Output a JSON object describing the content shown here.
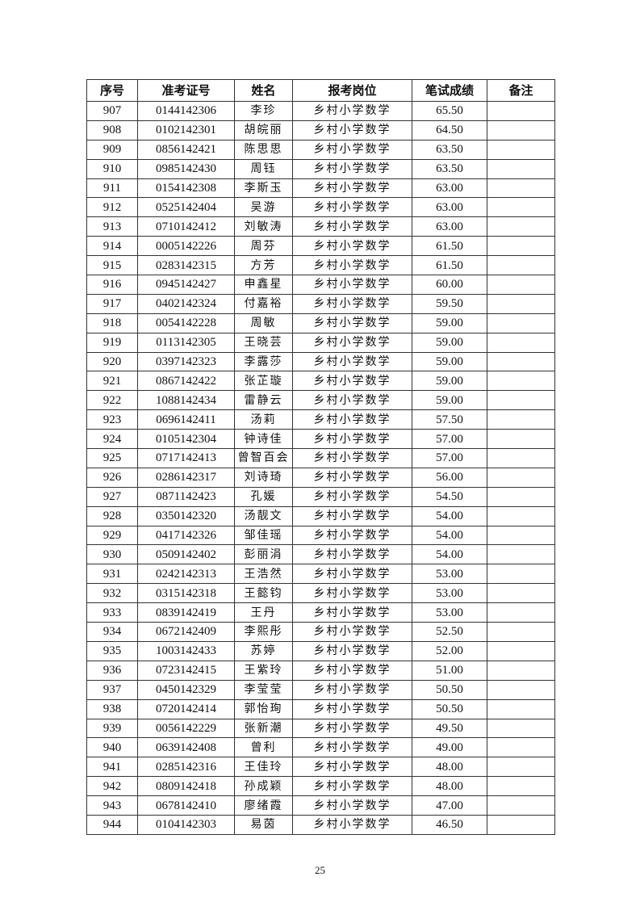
{
  "table": {
    "headers": [
      "序号",
      "准考证号",
      "姓名",
      "报考岗位",
      "笔试成绩",
      "备注"
    ],
    "rows": [
      [
        "907",
        "0144142306",
        "李珍",
        "乡村小学数学",
        "65.50",
        ""
      ],
      [
        "908",
        "0102142301",
        "胡皖丽",
        "乡村小学数学",
        "64.50",
        ""
      ],
      [
        "909",
        "0856142421",
        "陈思思",
        "乡村小学数学",
        "63.50",
        ""
      ],
      [
        "910",
        "0985142430",
        "周钰",
        "乡村小学数学",
        "63.50",
        ""
      ],
      [
        "911",
        "0154142308",
        "李斯玉",
        "乡村小学数学",
        "63.00",
        ""
      ],
      [
        "912",
        "0525142404",
        "吴游",
        "乡村小学数学",
        "63.00",
        ""
      ],
      [
        "913",
        "0710142412",
        "刘敏涛",
        "乡村小学数学",
        "63.00",
        ""
      ],
      [
        "914",
        "0005142226",
        "周芬",
        "乡村小学数学",
        "61.50",
        ""
      ],
      [
        "915",
        "0283142315",
        "方芳",
        "乡村小学数学",
        "61.50",
        ""
      ],
      [
        "916",
        "0945142427",
        "申鑫星",
        "乡村小学数学",
        "60.00",
        ""
      ],
      [
        "917",
        "0402142324",
        "付嘉裕",
        "乡村小学数学",
        "59.50",
        ""
      ],
      [
        "918",
        "0054142228",
        "周敏",
        "乡村小学数学",
        "59.00",
        ""
      ],
      [
        "919",
        "0113142305",
        "王晓芸",
        "乡村小学数学",
        "59.00",
        ""
      ],
      [
        "920",
        "0397142323",
        "李露莎",
        "乡村小学数学",
        "59.00",
        ""
      ],
      [
        "921",
        "0867142422",
        "张芷璇",
        "乡村小学数学",
        "59.00",
        ""
      ],
      [
        "922",
        "1088142434",
        "雷静云",
        "乡村小学数学",
        "59.00",
        ""
      ],
      [
        "923",
        "0696142411",
        "汤莉",
        "乡村小学数学",
        "57.50",
        ""
      ],
      [
        "924",
        "0105142304",
        "钟诗佳",
        "乡村小学数学",
        "57.00",
        ""
      ],
      [
        "925",
        "0717142413",
        "曾智百会",
        "乡村小学数学",
        "57.00",
        ""
      ],
      [
        "926",
        "0286142317",
        "刘诗琦",
        "乡村小学数学",
        "56.00",
        ""
      ],
      [
        "927",
        "0871142423",
        "孔媛",
        "乡村小学数学",
        "54.50",
        ""
      ],
      [
        "928",
        "0350142320",
        "汤靓文",
        "乡村小学数学",
        "54.00",
        ""
      ],
      [
        "929",
        "0417142326",
        "邹佳瑶",
        "乡村小学数学",
        "54.00",
        ""
      ],
      [
        "930",
        "0509142402",
        "彭丽涓",
        "乡村小学数学",
        "54.00",
        ""
      ],
      [
        "931",
        "0242142313",
        "王浩然",
        "乡村小学数学",
        "53.00",
        ""
      ],
      [
        "932",
        "0315142318",
        "王懿钧",
        "乡村小学数学",
        "53.00",
        ""
      ],
      [
        "933",
        "0839142419",
        "王丹",
        "乡村小学数学",
        "53.00",
        ""
      ],
      [
        "934",
        "0672142409",
        "李熙彤",
        "乡村小学数学",
        "52.50",
        ""
      ],
      [
        "935",
        "1003142433",
        "苏婷",
        "乡村小学数学",
        "52.00",
        ""
      ],
      [
        "936",
        "0723142415",
        "王紫玲",
        "乡村小学数学",
        "51.00",
        ""
      ],
      [
        "937",
        "0450142329",
        "李莹莹",
        "乡村小学数学",
        "50.50",
        ""
      ],
      [
        "938",
        "0720142414",
        "郭怡珣",
        "乡村小学数学",
        "50.50",
        ""
      ],
      [
        "939",
        "0056142229",
        "张新潮",
        "乡村小学数学",
        "49.50",
        ""
      ],
      [
        "940",
        "0639142408",
        "曾利",
        "乡村小学数学",
        "49.00",
        ""
      ],
      [
        "941",
        "0285142316",
        "王佳玲",
        "乡村小学数学",
        "48.00",
        ""
      ],
      [
        "942",
        "0809142418",
        "孙成颖",
        "乡村小学数学",
        "48.00",
        ""
      ],
      [
        "943",
        "0678142410",
        "廖绪霞",
        "乡村小学数学",
        "47.00",
        ""
      ],
      [
        "944",
        "0104142303",
        "易茵",
        "乡村小学数学",
        "46.50",
        ""
      ]
    ]
  },
  "page_number": "25"
}
